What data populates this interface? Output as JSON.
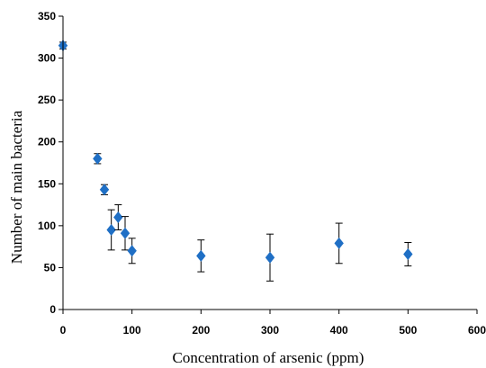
{
  "chart_data": {
    "type": "scatter",
    "xlabel": "Concentration of arsenic (ppm)",
    "ylabel": "Number of main bacteria",
    "xlim": [
      0,
      600
    ],
    "ylim": [
      0,
      350
    ],
    "xticks": [
      0,
      100,
      200,
      300,
      400,
      500,
      600
    ],
    "yticks": [
      0,
      50,
      100,
      150,
      200,
      250,
      300,
      350
    ],
    "grid": false,
    "marker": "diamond",
    "marker_color": "#1F6FC5",
    "points": [
      {
        "x": 0,
        "y": 315,
        "err": 4
      },
      {
        "x": 50,
        "y": 180,
        "err": 6
      },
      {
        "x": 60,
        "y": 143,
        "err": 6
      },
      {
        "x": 70,
        "y": 95,
        "err": 24
      },
      {
        "x": 80,
        "y": 110,
        "err": 15
      },
      {
        "x": 90,
        "y": 91,
        "err": 20
      },
      {
        "x": 100,
        "y": 70,
        "err": 15
      },
      {
        "x": 200,
        "y": 64,
        "err": 19
      },
      {
        "x": 300,
        "y": 62,
        "err": 28
      },
      {
        "x": 400,
        "y": 79,
        "err": 24
      },
      {
        "x": 500,
        "y": 66,
        "err": 14
      }
    ]
  }
}
